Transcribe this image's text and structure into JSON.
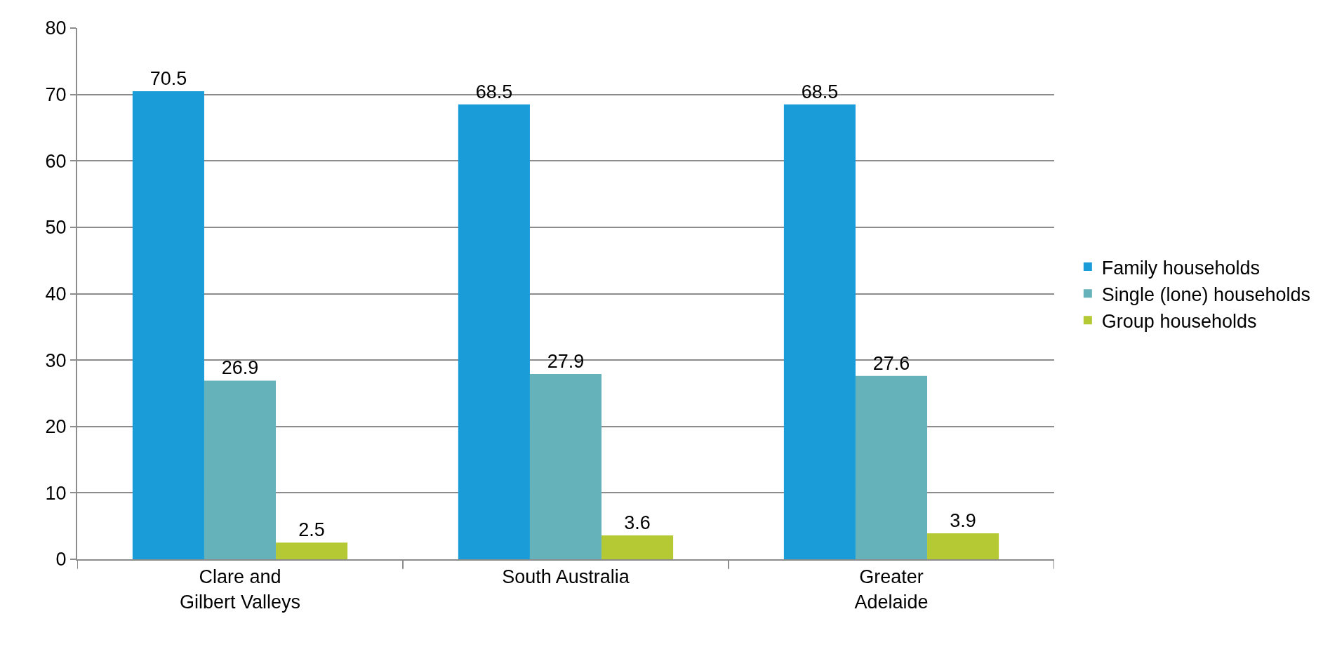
{
  "chart_data": {
    "type": "bar",
    "categories": [
      "Clare and Gilbert Valleys",
      "South Australia",
      "Greater Adelaide"
    ],
    "series": [
      {
        "name": "Family households",
        "color": "#1a9cd8",
        "values": [
          70.5,
          68.5,
          68.5
        ]
      },
      {
        "name": "Single (lone) households",
        "color": "#66b2ba",
        "values": [
          26.9,
          27.9,
          27.6
        ]
      },
      {
        "name": "Group households",
        "color": "#b5c935",
        "values": [
          2.5,
          3.6,
          3.9
        ]
      }
    ],
    "ylim": [
      0,
      80
    ],
    "yticks": [
      0,
      10,
      20,
      30,
      40,
      50,
      60,
      70,
      80
    ],
    "grid": "y",
    "legend": "right",
    "data_labels": true
  }
}
